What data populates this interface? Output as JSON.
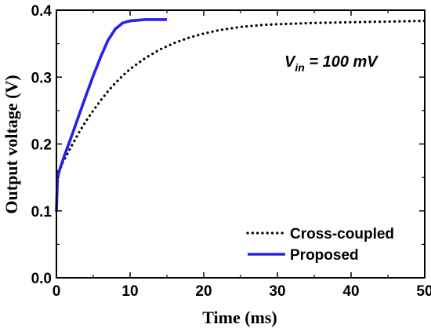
{
  "chart_data": {
    "type": "line",
    "title": "",
    "xlabel": "Time (ms)",
    "ylabel": "Output voltage (V)",
    "xlim": [
      0,
      50
    ],
    "ylim": [
      0.0,
      0.4
    ],
    "xticks": [
      0,
      10,
      20,
      30,
      40,
      50
    ],
    "yticks": [
      0.0,
      0.1,
      0.2,
      0.3,
      0.4
    ],
    "xtick_labels": [
      "0",
      "10",
      "20",
      "30",
      "40",
      "50"
    ],
    "ytick_labels": [
      "0.0",
      "0.1",
      "0.2",
      "0.3",
      "0.4"
    ],
    "grid": false,
    "legend_position": "bottom-right",
    "annotation": {
      "prefix": "V",
      "subscript": "in",
      "suffix": " = 100 mV"
    },
    "series": [
      {
        "name": "Cross-coupled",
        "style": "dotted",
        "color": "#000000",
        "x": [
          0,
          0.25,
          0.5,
          1,
          2,
          3,
          4,
          5,
          6,
          7,
          8,
          9,
          10,
          12,
          14,
          16,
          18,
          20,
          22,
          25,
          28,
          30,
          35,
          40,
          45,
          50
        ],
        "y": [
          0.1,
          0.16,
          0.165,
          0.175,
          0.196,
          0.216,
          0.234,
          0.25,
          0.265,
          0.279,
          0.291,
          0.302,
          0.312,
          0.328,
          0.341,
          0.351,
          0.359,
          0.365,
          0.37,
          0.375,
          0.378,
          0.379,
          0.381,
          0.382,
          0.383,
          0.384
        ]
      },
      {
        "name": "Proposed",
        "style": "solid",
        "color": "#2323e6",
        "x": [
          0,
          0.15,
          0.4,
          1,
          2,
          3,
          4,
          5,
          6,
          7,
          8,
          9,
          10,
          11,
          12,
          13,
          14,
          15
        ],
        "y": [
          0.1,
          0.15,
          0.16,
          0.18,
          0.21,
          0.241,
          0.272,
          0.302,
          0.33,
          0.355,
          0.372,
          0.381,
          0.384,
          0.385,
          0.386,
          0.386,
          0.386,
          0.386
        ]
      }
    ]
  }
}
